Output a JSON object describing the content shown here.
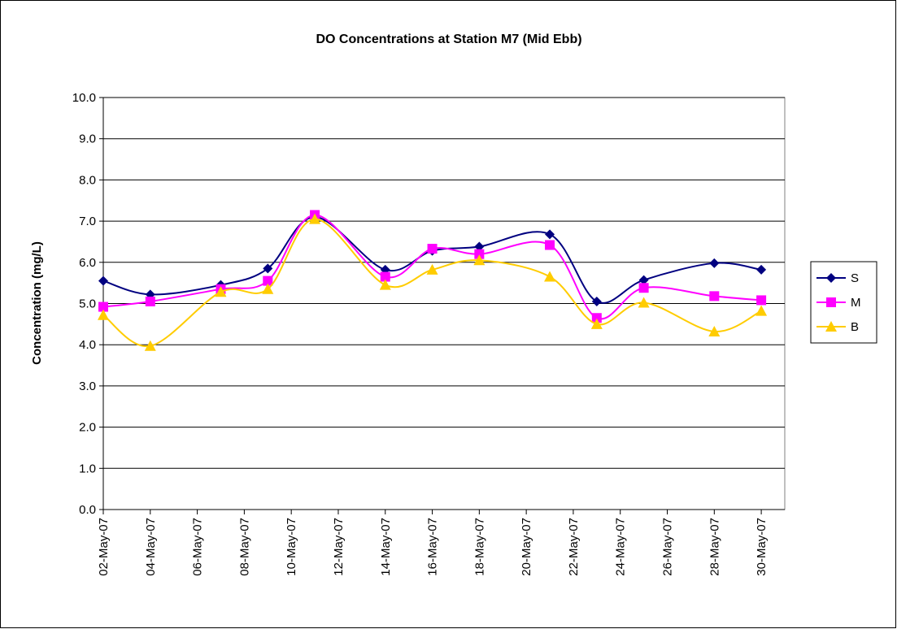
{
  "chart_data": {
    "type": "line",
    "title": "DO Concentrations at Station M7 (Mid Ebb)",
    "ylabel": "Concentration (mg/L)",
    "x": [
      "02-May-07",
      "04-May-07",
      "07-May-07",
      "09-May-07",
      "11-May-07",
      "14-May-07",
      "16-May-07",
      "18-May-07",
      "21-May-07",
      "23-May-07",
      "25-May-07",
      "28-May-07",
      "30-May-07"
    ],
    "xlim": [
      "02-May-07",
      "31-May-07"
    ],
    "xticks": [
      "02-May-07",
      "04-May-07",
      "06-May-07",
      "08-May-07",
      "10-May-07",
      "12-May-07",
      "14-May-07",
      "16-May-07",
      "18-May-07",
      "20-May-07",
      "22-May-07",
      "24-May-07",
      "26-May-07",
      "28-May-07",
      "30-May-07"
    ],
    "ylim": [
      0,
      10
    ],
    "yticks": [
      {
        "value": 0,
        "label": "0.0"
      },
      {
        "value": 1,
        "label": "1.0"
      },
      {
        "value": 2,
        "label": "2.0"
      },
      {
        "value": 3,
        "label": "3.0"
      },
      {
        "value": 4,
        "label": "4.0"
      },
      {
        "value": 5,
        "label": "5.0"
      },
      {
        "value": 6,
        "label": "6.0"
      },
      {
        "value": 7,
        "label": "7.0"
      },
      {
        "value": 8,
        "label": "8.0"
      },
      {
        "value": 9,
        "label": "9.0"
      },
      {
        "value": 10,
        "label": "10.0"
      }
    ],
    "grid": true,
    "legend": "right",
    "series": [
      {
        "name": "S",
        "color": "#000080",
        "marker": "diamond",
        "values": [
          5.55,
          5.22,
          5.45,
          5.85,
          7.1,
          5.82,
          6.28,
          6.38,
          6.68,
          5.05,
          5.57,
          5.98,
          5.82
        ]
      },
      {
        "name": "M",
        "color": "#ff00ff",
        "marker": "square",
        "values": [
          4.92,
          5.05,
          5.35,
          5.55,
          7.15,
          5.65,
          6.33,
          6.2,
          6.42,
          4.65,
          5.38,
          5.18,
          5.08
        ]
      },
      {
        "name": "B",
        "color": "#ffcc00",
        "marker": "triangle",
        "values": [
          4.72,
          3.97,
          5.28,
          5.35,
          7.05,
          5.45,
          5.82,
          6.05,
          5.65,
          4.5,
          5.02,
          4.32,
          4.82
        ]
      }
    ]
  }
}
